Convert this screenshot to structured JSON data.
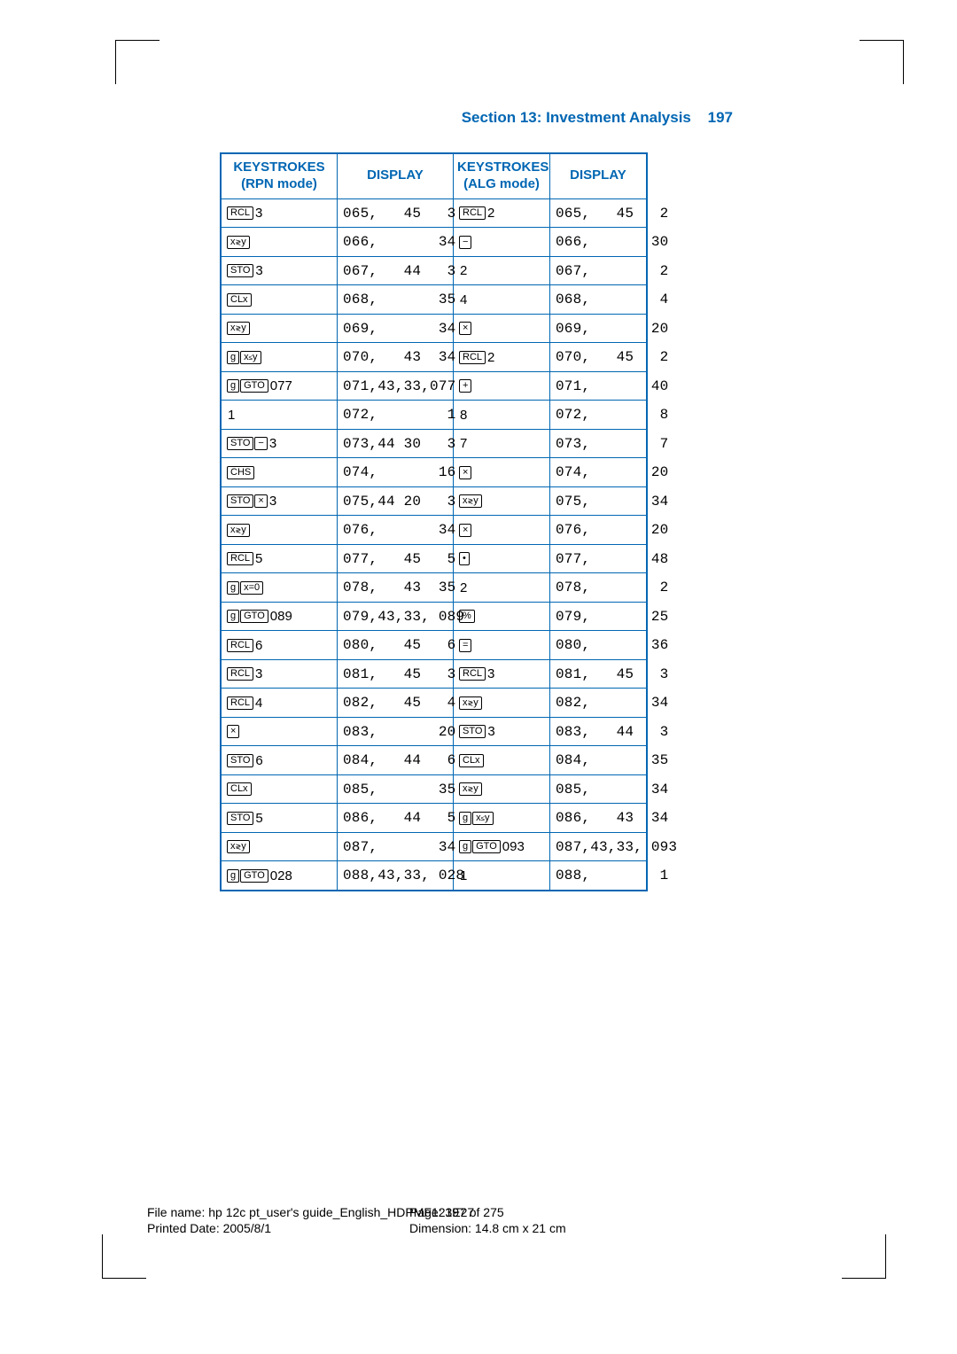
{
  "colors": {
    "accent": "#0066b3",
    "text": "#000000",
    "bg": "#ffffff"
  },
  "header": {
    "section": "Section 13: Investment Analysis",
    "page": "197"
  },
  "columns": {
    "rpn": "KEYSTROKES\n(RPN mode)",
    "disp1": "DISPLAY",
    "alg": "KEYSTROKES\n(ALG mode)",
    "disp2": "DISPLAY"
  },
  "rows": [
    {
      "rpn": {
        "keys": [
          "RCL"
        ],
        "after": "3"
      },
      "d1": "065,   45   3",
      "alg": {
        "keys": [
          "RCL"
        ],
        "after": "2"
      },
      "d2": "065,   45   2"
    },
    {
      "rpn": {
        "keys": [
          "x≷y"
        ]
      },
      "d1": "066,       34",
      "alg": {
        "keys": [
          "−"
        ]
      },
      "d2": "066,       30"
    },
    {
      "rpn": {
        "keys": [
          "STO"
        ],
        "after": "3"
      },
      "d1": "067,   44   3",
      "alg": {
        "plain": "2"
      },
      "d2": "067,        2"
    },
    {
      "rpn": {
        "keys": [
          "CLx"
        ]
      },
      "d1": "068,       35",
      "alg": {
        "plain": "4"
      },
      "d2": "068,        4"
    },
    {
      "rpn": {
        "keys": [
          "x≷y"
        ]
      },
      "d1": "069,       34",
      "alg": {
        "keys": [
          "X"
        ]
      },
      "d2": "069,       20"
    },
    {
      "rpn": {
        "keys": [
          "g",
          "x≤y"
        ]
      },
      "d1": "070,   43  34",
      "alg": {
        "keys": [
          "RCL"
        ],
        "after": "2"
      },
      "d2": "070,   45   2"
    },
    {
      "rpn": {
        "keys": [
          "g",
          "GTO"
        ],
        "after": "077"
      },
      "d1": "071,43,33,077",
      "alg": {
        "keys": [
          "+"
        ]
      },
      "d2": "071,       40"
    },
    {
      "rpn": {
        "plain": "1"
      },
      "d1": "072,        1",
      "alg": {
        "plain": "8"
      },
      "d2": "072,        8"
    },
    {
      "rpn": {
        "keys": [
          "STO",
          "−"
        ],
        "after": "3"
      },
      "d1": "073,44 30   3",
      "alg": {
        "plain": "7"
      },
      "d2": "073,        7"
    },
    {
      "rpn": {
        "keys": [
          "CHS"
        ]
      },
      "d1": "074,       16",
      "alg": {
        "keys": [
          "X"
        ]
      },
      "d2": "074,       20"
    },
    {
      "rpn": {
        "keys": [
          "STO",
          "X"
        ],
        "after": "3"
      },
      "d1": "075,44 20   3",
      "alg": {
        "keys": [
          "x≷y"
        ]
      },
      "d2": "075,       34"
    },
    {
      "rpn": {
        "keys": [
          "x≷y"
        ]
      },
      "d1": "076,       34",
      "alg": {
        "keys": [
          "X"
        ]
      },
      "d2": "076,       20"
    },
    {
      "rpn": {
        "keys": [
          "RCL"
        ],
        "after": "5"
      },
      "d1": "077,   45   5",
      "alg": {
        "keys": [
          "•"
        ]
      },
      "d2": "077,       48"
    },
    {
      "rpn": {
        "keys": [
          "g",
          "x=0"
        ]
      },
      "d1": "078,   43  35",
      "alg": {
        "plain": "2"
      },
      "d2": "078,        2"
    },
    {
      "rpn": {
        "keys": [
          "g",
          "GTO"
        ],
        "after": "089"
      },
      "d1": "079,43,33, 089",
      "alg": {
        "keys": [
          "%"
        ]
      },
      "d2": "079,       25"
    },
    {
      "rpn": {
        "keys": [
          "RCL"
        ],
        "after": "6"
      },
      "d1": "080,   45   6",
      "alg": {
        "keys": [
          "="
        ]
      },
      "d2": "080,       36"
    },
    {
      "rpn": {
        "keys": [
          "RCL"
        ],
        "after": "3"
      },
      "d1": "081,   45   3",
      "alg": {
        "keys": [
          "RCL"
        ],
        "after": "3"
      },
      "d2": "081,   45   3"
    },
    {
      "rpn": {
        "keys": [
          "RCL"
        ],
        "after": "4"
      },
      "d1": "082,   45   4",
      "alg": {
        "keys": [
          "x≷y"
        ]
      },
      "d2": "082,       34"
    },
    {
      "rpn": {
        "keys": [
          "X"
        ]
      },
      "d1": "083,       20",
      "alg": {
        "keys": [
          "STO"
        ],
        "after": "3"
      },
      "d2": "083,   44   3"
    },
    {
      "rpn": {
        "keys": [
          "STO"
        ],
        "after": "6"
      },
      "d1": "084,   44   6",
      "alg": {
        "keys": [
          "CLx"
        ]
      },
      "d2": "084,       35"
    },
    {
      "rpn": {
        "keys": [
          "CLx"
        ]
      },
      "d1": "085,       35",
      "alg": {
        "keys": [
          "x≷y"
        ]
      },
      "d2": "085,       34"
    },
    {
      "rpn": {
        "keys": [
          "STO"
        ],
        "after": "5"
      },
      "d1": "086,   44   5",
      "alg": {
        "keys": [
          "g",
          "x≤y"
        ]
      },
      "d2": "086,   43  34"
    },
    {
      "rpn": {
        "keys": [
          "x≷y"
        ]
      },
      "d1": "087,       34",
      "alg": {
        "keys": [
          "g",
          "GTO"
        ],
        "after": "093"
      },
      "d2": "087,43,33, 093"
    },
    {
      "rpn": {
        "keys": [
          "g",
          "GTO"
        ],
        "after": "028"
      },
      "d1": "088,43,33, 028",
      "alg": {
        "plain": "1"
      },
      "d2": "088,        1"
    }
  ],
  "footer": {
    "filename": "File name: hp 12c pt_user's guide_English_HDPMF123E27",
    "page": "Page: 197 of 275",
    "printed": "Printed Date: 2005/8/1",
    "dim": "Dimension: 14.8 cm x 21 cm"
  }
}
